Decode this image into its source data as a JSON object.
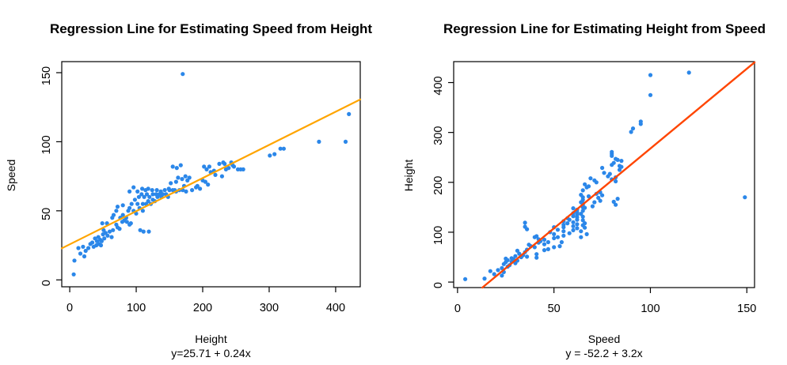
{
  "figure": {
    "background": "#ffffff",
    "text_color": "#000000"
  },
  "chart_data": {
    "type": "scatter",
    "description": "Two base-R style scatter plots of the same roller-coaster style dataset (height vs speed), each with a fitted regression line.",
    "point_color": "#2B87E9",
    "points_format": [
      "height",
      "speed"
    ],
    "points": [
      [
        6,
        4
      ],
      [
        7,
        14
      ],
      [
        13,
        23
      ],
      [
        16,
        19
      ],
      [
        20,
        24
      ],
      [
        22,
        17
      ],
      [
        24,
        21
      ],
      [
        28,
        23
      ],
      [
        31,
        26
      ],
      [
        34,
        27
      ],
      [
        36,
        24
      ],
      [
        38,
        30
      ],
      [
        40,
        25
      ],
      [
        41,
        28
      ],
      [
        43,
        31
      ],
      [
        44,
        26
      ],
      [
        46,
        29
      ],
      [
        47,
        25
      ],
      [
        48,
        28
      ],
      [
        49,
        41
      ],
      [
        50,
        33
      ],
      [
        51,
        36
      ],
      [
        52,
        30
      ],
      [
        54,
        34
      ],
      [
        56,
        41
      ],
      [
        57,
        32
      ],
      [
        60,
        35
      ],
      [
        63,
        31
      ],
      [
        65,
        36
      ],
      [
        64,
        45
      ],
      [
        70,
        40
      ],
      [
        72,
        38
      ],
      [
        75,
        37
      ],
      [
        79,
        42
      ],
      [
        82,
        43
      ],
      [
        86,
        42
      ],
      [
        90,
        40
      ],
      [
        92,
        41
      ],
      [
        106,
        36
      ],
      [
        111,
        35
      ],
      [
        119,
        35
      ],
      [
        66,
        47
      ],
      [
        70,
        50
      ],
      [
        72,
        53
      ],
      [
        76,
        45
      ],
      [
        80,
        47
      ],
      [
        80,
        54
      ],
      [
        85,
        45
      ],
      [
        88,
        50
      ],
      [
        90,
        52
      ],
      [
        90,
        64
      ],
      [
        93,
        55
      ],
      [
        96,
        50
      ],
      [
        96,
        67
      ],
      [
        98,
        58
      ],
      [
        100,
        48
      ],
      [
        102,
        55
      ],
      [
        102,
        64
      ],
      [
        104,
        60
      ],
      [
        105,
        52
      ],
      [
        108,
        62
      ],
      [
        109,
        66
      ],
      [
        110,
        50
      ],
      [
        110,
        55
      ],
      [
        112,
        60
      ],
      [
        114,
        65
      ],
      [
        115,
        55
      ],
      [
        116,
        62
      ],
      [
        118,
        57
      ],
      [
        118,
        66
      ],
      [
        120,
        60
      ],
      [
        122,
        55
      ],
      [
        124,
        65
      ],
      [
        125,
        58
      ],
      [
        125,
        62
      ],
      [
        128,
        57
      ],
      [
        130,
        62
      ],
      [
        131,
        65
      ],
      [
        132,
        60
      ],
      [
        135,
        62
      ],
      [
        137,
        64
      ],
      [
        138,
        60
      ],
      [
        140,
        62
      ],
      [
        143,
        65
      ],
      [
        145,
        62
      ],
      [
        148,
        60
      ],
      [
        149,
        66
      ],
      [
        150,
        65
      ],
      [
        152,
        70
      ],
      [
        155,
        65
      ],
      [
        155,
        82
      ],
      [
        158,
        65
      ],
      [
        160,
        64
      ],
      [
        160,
        71
      ],
      [
        161,
        81
      ],
      [
        163,
        74
      ],
      [
        165,
        65
      ],
      [
        167,
        83
      ],
      [
        169,
        73
      ],
      [
        170,
        65
      ],
      [
        172,
        68
      ],
      [
        174,
        75
      ],
      [
        175,
        64
      ],
      [
        177,
        72
      ],
      [
        180,
        74
      ],
      [
        184,
        65
      ],
      [
        190,
        67
      ],
      [
        192,
        68
      ],
      [
        196,
        66
      ],
      [
        200,
        72
      ],
      [
        202,
        82
      ],
      [
        204,
        71
      ],
      [
        206,
        80
      ],
      [
        208,
        69
      ],
      [
        210,
        82
      ],
      [
        212,
        78
      ],
      [
        217,
        79
      ],
      [
        219,
        76
      ],
      [
        225,
        84
      ],
      [
        229,
        75
      ],
      [
        231,
        85
      ],
      [
        233,
        84
      ],
      [
        235,
        80
      ],
      [
        239,
        81
      ],
      [
        243,
        85
      ],
      [
        245,
        83
      ],
      [
        247,
        82
      ],
      [
        253,
        80
      ],
      [
        257,
        80
      ],
      [
        261,
        80
      ],
      [
        301,
        90
      ],
      [
        308,
        91
      ],
      [
        317,
        95
      ],
      [
        322,
        95
      ],
      [
        375,
        100
      ],
      [
        415,
        100
      ],
      [
        420,
        120
      ],
      [
        170,
        149
      ]
    ],
    "panels": [
      {
        "title": "Regression Line for Estimating Speed from Height",
        "xlabel": "Height",
        "ylabel": "Speed",
        "equation": "y=25.71 + 0.24x",
        "x_index": 0,
        "y_index": 1,
        "xticks": [
          0,
          100,
          200,
          300,
          400
        ],
        "yticks": [
          0,
          50,
          100,
          150
        ],
        "xlim": [
          -12,
          437
        ],
        "ylim": [
          -5,
          158
        ],
        "box": {
          "left": 78,
          "top": 78,
          "right": 455,
          "bottom": 363
        },
        "line": {
          "intercept": 25.71,
          "slope": 0.24,
          "color": "#FFA500",
          "width": 2.2
        }
      },
      {
        "title": "Regression Line for Estimating Height from Speed",
        "xlabel": "Speed",
        "ylabel": "Height",
        "equation": "y = -52.2 + 3.2x",
        "x_index": 1,
        "y_index": 0,
        "xticks": [
          0,
          50,
          100,
          150
        ],
        "yticks": [
          0,
          100,
          200,
          300,
          400
        ],
        "xlim": [
          -2,
          154
        ],
        "ylim": [
          -11,
          442
        ],
        "box": {
          "left": 573,
          "top": 78,
          "right": 953,
          "bottom": 364
        },
        "line": {
          "intercept": -52.2,
          "slope": 3.2,
          "color": "#FF4500",
          "width": 2.4
        }
      }
    ],
    "legend": null,
    "grid": false
  }
}
